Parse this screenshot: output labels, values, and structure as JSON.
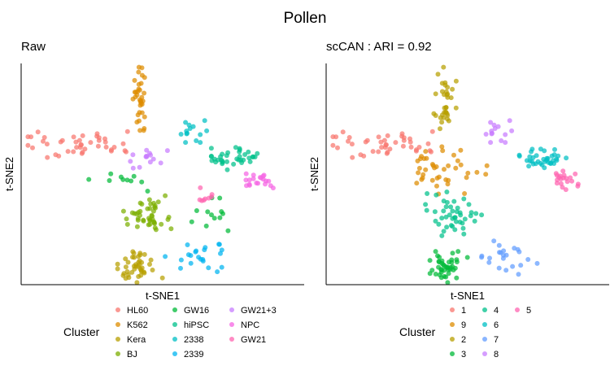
{
  "title": "Pollen",
  "colors": {
    "c_red": "#F8766D",
    "c_orange": "#DE8C00",
    "c_olive": "#B79F00",
    "c_green": "#7CAE00",
    "c_green2": "#00BA38",
    "c_teal": "#00C08B",
    "c_cyan": "#00BFC4",
    "c_sky": "#00B4F0",
    "c_blue": "#619CFF",
    "c_purple": "#C77CFF",
    "c_magenta": "#F564E3",
    "c_pink": "#FF64B0"
  },
  "chart_data": [
    {
      "type": "scatter",
      "title": "Raw",
      "xlabel": "t-SNE1",
      "ylabel": "t-SNE2",
      "xlim": [
        0,
        100
      ],
      "ylim": [
        0,
        100
      ],
      "legend_title": "Cluster",
      "legend_position": "bottom",
      "groups": [
        {
          "name": "HL60",
          "color": "#F8766D",
          "x": 20,
          "y": 63,
          "sx": 8,
          "sy": 3.5,
          "n": 42
        },
        {
          "name": "K562",
          "color": "#DE8C00",
          "x": 42,
          "y": 84,
          "sx": 1.8,
          "sy": 6.5,
          "n": 34
        },
        {
          "name": "Kera",
          "color": "#B79F00",
          "x": 42,
          "y": 8,
          "sx": 3.6,
          "sy": 3.2,
          "n": 42
        },
        {
          "name": "BJ",
          "color": "#7CAE00",
          "x": 45,
          "y": 32,
          "sx": 4.5,
          "sy": 4.5,
          "n": 44
        },
        {
          "name": "GW16",
          "color": "#00BA38",
          "x": 34,
          "y": 47,
          "sx": 6,
          "sy": 2.6,
          "n": 10
        },
        {
          "name": "GW16",
          "color": "#00BA38",
          "x": 67,
          "y": 33,
          "sx": 4,
          "sy": 5,
          "n": 12
        },
        {
          "name": "hiPSC",
          "color": "#00C08B",
          "x": 76,
          "y": 57,
          "sx": 4,
          "sy": 2.3,
          "n": 36
        },
        {
          "name": "2338",
          "color": "#00BFC4",
          "x": 61,
          "y": 70,
          "sx": 3.5,
          "sy": 3.2,
          "n": 14
        },
        {
          "name": "2339",
          "color": "#00B4F0",
          "x": 63,
          "y": 13,
          "sx": 5.5,
          "sy": 3.8,
          "n": 22
        },
        {
          "name": "GW21+3",
          "color": "#C77CFF",
          "x": 44,
          "y": 57,
          "sx": 3.5,
          "sy": 2,
          "n": 14
        },
        {
          "name": "NPC",
          "color": "#F564E3",
          "x": 84,
          "y": 47,
          "sx": 2.3,
          "sy": 2,
          "n": 20
        },
        {
          "name": "GW21",
          "color": "#FF64B0",
          "x": 65,
          "y": 41,
          "sx": 1.5,
          "sy": 1.8,
          "n": 8
        }
      ]
    },
    {
      "type": "scatter",
      "title": "scCAN : ARI = 0.92",
      "xlabel": "t-SNE1",
      "ylabel": "t-SNE2",
      "xlim": [
        0,
        100
      ],
      "ylim": [
        0,
        100
      ],
      "legend_title": "Cluster",
      "legend_position": "bottom",
      "groups": [
        {
          "name": "1",
          "color": "#F8766D",
          "x": 20,
          "y": 63,
          "sx": 8,
          "sy": 3.5,
          "n": 42
        },
        {
          "name": "9",
          "color": "#DE8C00",
          "x": 39,
          "y": 52,
          "sx": 8.5,
          "sy": 5,
          "n": 40
        },
        {
          "name": "2",
          "color": "#B79F00",
          "x": 42,
          "y": 84,
          "sx": 1.8,
          "sy": 6.5,
          "n": 34
        },
        {
          "name": "3",
          "color": "#00BA38",
          "x": 42,
          "y": 8,
          "sx": 3.6,
          "sy": 3.2,
          "n": 42
        },
        {
          "name": "4",
          "color": "#00C08B",
          "x": 45,
          "y": 32,
          "sx": 4.5,
          "sy": 4.5,
          "n": 44
        },
        {
          "name": "6",
          "color": "#00BFC4",
          "x": 76,
          "y": 57,
          "sx": 4,
          "sy": 2.3,
          "n": 36
        },
        {
          "name": "7",
          "color": "#619CFF",
          "x": 63,
          "y": 13,
          "sx": 5.5,
          "sy": 3.8,
          "n": 22
        },
        {
          "name": "8",
          "color": "#C77CFF",
          "x": 61,
          "y": 70,
          "sx": 3.5,
          "sy": 3.2,
          "n": 14
        },
        {
          "name": "5",
          "color": "#FF64B0",
          "x": 84,
          "y": 47,
          "sx": 2.3,
          "sy": 2,
          "n": 20
        }
      ]
    }
  ],
  "legends": [
    {
      "title": "Cluster",
      "columns": [
        [
          {
            "label": "HL60",
            "color": "#F8766D"
          },
          {
            "label": "K562",
            "color": "#DE8C00"
          },
          {
            "label": "Kera",
            "color": "#B79F00"
          },
          {
            "label": "BJ",
            "color": "#7CAE00"
          }
        ],
        [
          {
            "label": "GW16",
            "color": "#00BA38"
          },
          {
            "label": "hiPSC",
            "color": "#00C08B"
          },
          {
            "label": "2338",
            "color": "#00BFC4"
          },
          {
            "label": "2339",
            "color": "#00B4F0"
          }
        ],
        [
          {
            "label": "GW21+3",
            "color": "#C77CFF"
          },
          {
            "label": "NPC",
            "color": "#F564E3"
          },
          {
            "label": "GW21",
            "color": "#FF64B0"
          }
        ]
      ]
    },
    {
      "title": "Cluster",
      "columns": [
        [
          {
            "label": "1",
            "color": "#F8766D"
          },
          {
            "label": "9",
            "color": "#DE8C00"
          },
          {
            "label": "2",
            "color": "#B79F00"
          },
          {
            "label": "3",
            "color": "#00BA38"
          }
        ],
        [
          {
            "label": "4",
            "color": "#00C08B"
          },
          {
            "label": "6",
            "color": "#00BFC4"
          },
          {
            "label": "7",
            "color": "#619CFF"
          },
          {
            "label": "8",
            "color": "#C77CFF"
          }
        ],
        [
          {
            "label": "5",
            "color": "#FF64B0"
          }
        ]
      ]
    }
  ]
}
